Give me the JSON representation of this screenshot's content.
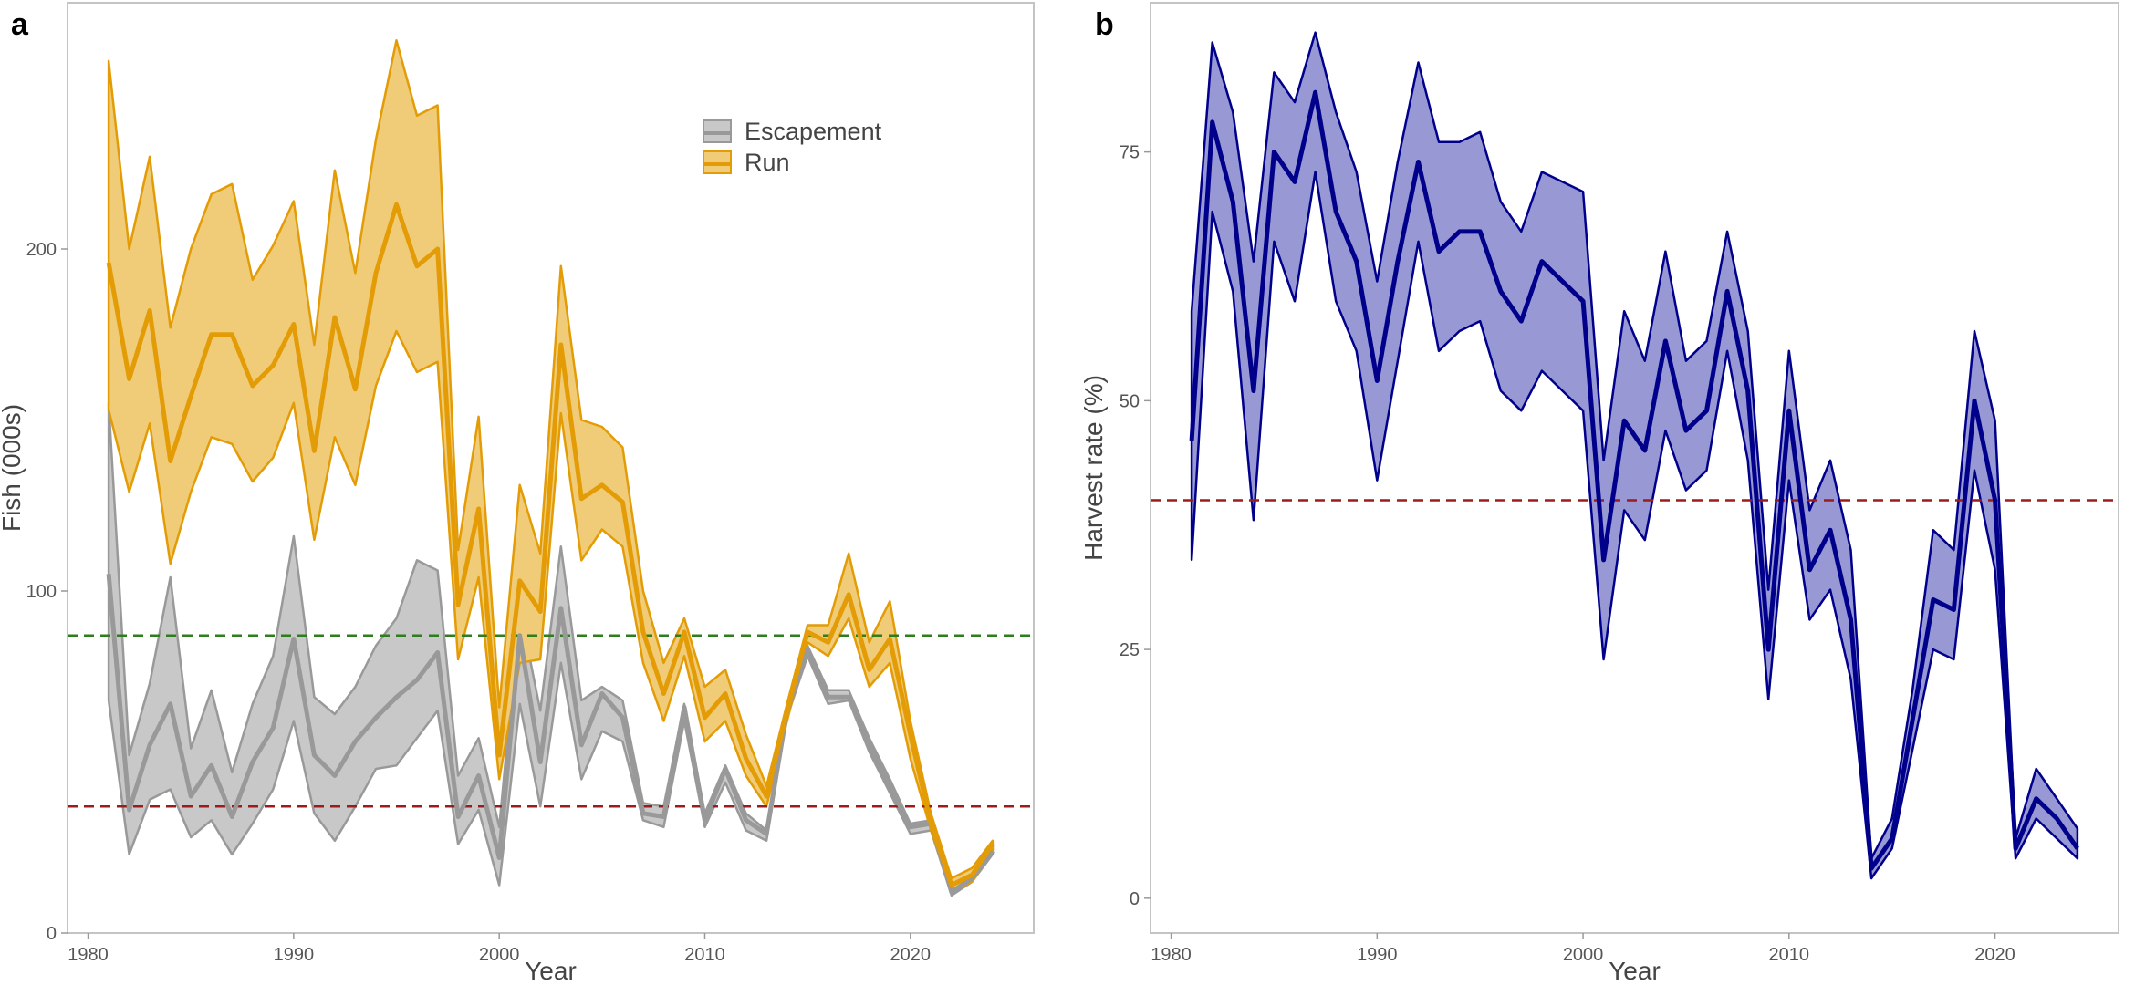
{
  "chart_data": [
    {
      "panel": "a",
      "type": "area",
      "xlabel": "Year",
      "ylabel": "Fish (000s)",
      "xlim": [
        1979,
        2026
      ],
      "ylim": [
        0,
        272
      ],
      "xticks": [
        1980,
        1990,
        2000,
        2010,
        2020
      ],
      "yticks": [
        0,
        100,
        200
      ],
      "grid": false,
      "legend_position": "top-right",
      "reference_lines": [
        {
          "y": 87,
          "color": "#2e7d1e",
          "style": "dashed"
        },
        {
          "y": 37,
          "color": "#9b1c1c",
          "style": "dashed"
        }
      ],
      "series": [
        {
          "name": "Escapement",
          "line_color": "#999999",
          "fill_color": "#c8c8c8",
          "x": [
            1981,
            1982,
            1983,
            1984,
            1985,
            1986,
            1987,
            1988,
            1989,
            1990,
            1991,
            1992,
            1993,
            1994,
            1995,
            1996,
            1997,
            1998,
            1999,
            2000,
            2001,
            2002,
            2003,
            2004,
            2005,
            2006,
            2007,
            2008,
            2009,
            2010,
            2011,
            2012,
            2013,
            2014,
            2015,
            2016,
            2017,
            2018,
            2019,
            2020,
            2021,
            2022,
            2023,
            2024
          ],
          "median": [
            105,
            36,
            55,
            67,
            40,
            49,
            34,
            50,
            60,
            86,
            52,
            46,
            56,
            63,
            69,
            74,
            82,
            34,
            46,
            22,
            87,
            50,
            95,
            55,
            70,
            63,
            35,
            34,
            66,
            33,
            48,
            33,
            29,
            65,
            83,
            69,
            69,
            55,
            43,
            31,
            32,
            12,
            16,
            24
          ],
          "lower": [
            68,
            23,
            39,
            42,
            28,
            33,
            23,
            32,
            42,
            62,
            35,
            27,
            37,
            48,
            49,
            57,
            65,
            26,
            36,
            14,
            67,
            37,
            79,
            45,
            59,
            56,
            33,
            31,
            62,
            31,
            44,
            30,
            27,
            63,
            81,
            67,
            68,
            53,
            41,
            29,
            30,
            11,
            15,
            23
          ],
          "upper": [
            155,
            52,
            73,
            104,
            54,
            71,
            47,
            67,
            81,
            116,
            69,
            64,
            72,
            84,
            92,
            109,
            106,
            46,
            57,
            31,
            95,
            65,
            113,
            68,
            72,
            68,
            38,
            37,
            67,
            35,
            49,
            35,
            30,
            66,
            84,
            71,
            71,
            57,
            45,
            32,
            33,
            14,
            17,
            25
          ]
        },
        {
          "name": "Run",
          "line_color": "#e39c06",
          "fill_color": "#f0cc78",
          "x": [
            1981,
            1982,
            1983,
            1984,
            1985,
            1986,
            1987,
            1988,
            1989,
            1990,
            1991,
            1992,
            1993,
            1994,
            1995,
            1996,
            1997,
            1998,
            1999,
            2000,
            2001,
            2002,
            2003,
            2004,
            2005,
            2006,
            2007,
            2008,
            2009,
            2010,
            2011,
            2012,
            2013,
            2014,
            2015,
            2016,
            2017,
            2018,
            2019,
            2020,
            2021,
            2022,
            2023,
            2024
          ],
          "median": [
            196,
            162,
            182,
            138,
            157,
            175,
            175,
            160,
            166,
            178,
            141,
            180,
            159,
            193,
            213,
            195,
            200,
            96,
            124,
            52,
            103,
            94,
            172,
            127,
            131,
            126,
            88,
            70,
            88,
            63,
            70,
            51,
            40,
            65,
            88,
            85,
            99,
            77,
            86,
            58,
            32,
            14,
            17,
            26
          ],
          "lower": [
            153,
            129,
            149,
            108,
            129,
            145,
            143,
            132,
            139,
            155,
            115,
            145,
            131,
            160,
            176,
            164,
            167,
            80,
            104,
            45,
            79,
            80,
            152,
            109,
            118,
            113,
            79,
            62,
            81,
            56,
            62,
            46,
            37,
            62,
            85,
            81,
            92,
            72,
            79,
            51,
            30,
            12,
            15,
            24
          ],
          "upper": [
            255,
            200,
            227,
            177,
            200,
            216,
            219,
            191,
            201,
            214,
            172,
            223,
            193,
            232,
            261,
            239,
            242,
            112,
            151,
            66,
            131,
            111,
            195,
            150,
            148,
            142,
            100,
            79,
            92,
            72,
            77,
            58,
            43,
            67,
            90,
            90,
            111,
            85,
            97,
            62,
            35,
            16,
            19,
            27
          ]
        }
      ]
    },
    {
      "panel": "b",
      "type": "area",
      "xlabel": "Year",
      "ylabel": "Harvest rate (%)",
      "xlim": [
        1979,
        2026
      ],
      "ylim": [
        -3.5,
        90
      ],
      "xticks": [
        1980,
        1990,
        2000,
        2010,
        2020
      ],
      "yticks": [
        0,
        25,
        50,
        75
      ],
      "grid": false,
      "reference_lines": [
        {
          "y": 40,
          "color": "#9b1c1c",
          "style": "dashed"
        }
      ],
      "series": [
        {
          "line_color": "#00008b",
          "fill_color": "#9899d4",
          "x": [
            1981,
            1982,
            1983,
            1984,
            1985,
            1986,
            1987,
            1988,
            1989,
            1990,
            1991,
            1992,
            1993,
            1994,
            1995,
            1996,
            1997,
            1998,
            1999,
            2000,
            2001,
            2002,
            2003,
            2004,
            2005,
            2006,
            2007,
            2008,
            2009,
            2010,
            2011,
            2012,
            2013,
            2014,
            2015,
            2016,
            2017,
            2018,
            2019,
            2020,
            2021,
            2022,
            2023,
            2024
          ],
          "median": [
            46,
            78,
            70,
            51,
            75,
            72,
            81,
            69,
            64,
            52,
            64,
            74,
            65,
            67,
            67,
            61,
            58,
            64,
            62,
            60,
            34,
            48,
            45,
            56,
            47,
            49,
            61,
            51,
            25,
            49,
            33,
            37,
            28,
            3,
            6,
            18,
            30,
            29,
            50,
            40,
            5,
            10,
            8,
            5
          ],
          "lower": [
            34,
            69,
            61,
            38,
            66,
            60,
            73,
            60,
            55,
            42,
            54,
            66,
            55,
            57,
            58,
            51,
            49,
            53,
            51,
            49,
            24,
            39,
            36,
            47,
            41,
            43,
            55,
            44,
            20,
            42,
            28,
            31,
            22,
            2,
            5,
            15,
            25,
            24,
            43,
            33,
            4,
            8,
            6,
            4
          ],
          "upper": [
            59,
            86,
            79,
            64,
            83,
            80,
            87,
            79,
            73,
            62,
            74,
            84,
            76,
            76,
            77,
            70,
            67,
            73,
            72,
            71,
            44,
            59,
            54,
            65,
            54,
            56,
            67,
            57,
            31,
            55,
            39,
            44,
            35,
            4,
            8,
            21,
            37,
            35,
            57,
            48,
            6,
            13,
            10,
            7
          ]
        }
      ]
    }
  ],
  "panels": {
    "a": {
      "letter": "a"
    },
    "b": {
      "letter": "b"
    }
  },
  "legend": {
    "items": [
      "Escapement",
      "Run"
    ]
  }
}
